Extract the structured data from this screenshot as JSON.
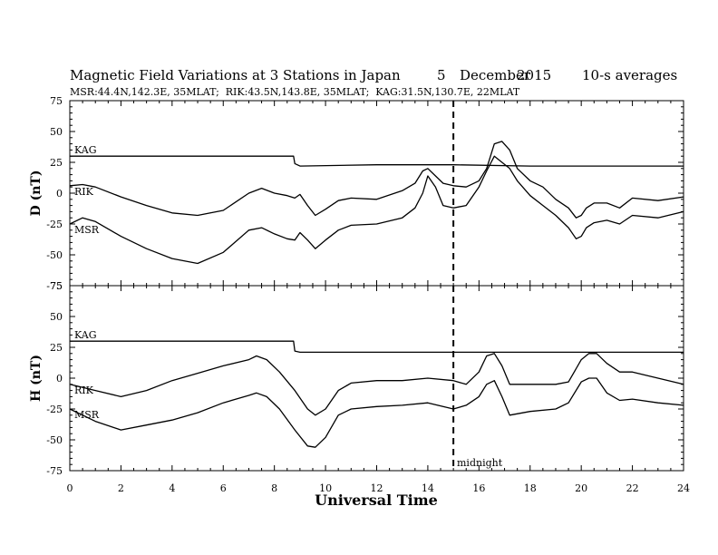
{
  "header": {
    "title": "Magnetic Field Variations at 3 Stations in Japan",
    "day": "5",
    "month": "December",
    "year": "2015",
    "averaging": "10-s averages",
    "stations": "MSR:44.4N,142.3E, 35MLAT;  RIK:43.5N,143.8E, 35MLAT;  KAG:31.5N,130.7E, 22MLAT"
  },
  "chart_data": [
    {
      "type": "line",
      "ylabel": "D (nT)",
      "xlabel": "",
      "ylim": [
        -75,
        75
      ],
      "xlim": [
        0,
        24
      ],
      "yticks": [
        "75",
        "50",
        "25",
        "0",
        "-25",
        "-50",
        "-75"
      ],
      "series": [
        {
          "name": "KAG",
          "x": [
            0,
            8.7,
            8.75,
            8.8,
            9,
            12,
            14,
            15,
            18,
            20,
            22,
            24
          ],
          "values": [
            30,
            30,
            30,
            24,
            22,
            23,
            23,
            23,
            22,
            22,
            22,
            22
          ]
        },
        {
          "name": "RIK",
          "x": [
            0,
            0.5,
            1,
            2,
            3,
            4,
            5,
            6,
            7,
            7.5,
            8,
            8.5,
            8.8,
            9,
            9.3,
            9.6,
            10,
            10.5,
            11,
            12,
            13,
            13.5,
            13.8,
            14,
            14.3,
            14.6,
            15,
            15.5,
            16,
            16.3,
            16.6,
            16.9,
            17.2,
            17.5,
            18,
            18.5,
            19,
            19.5,
            19.8,
            20,
            20.2,
            20.5,
            21,
            21.5,
            22,
            23,
            24
          ],
          "values": [
            6,
            7,
            5,
            -3,
            -10,
            -16,
            -18,
            -14,
            0,
            4,
            0,
            -2,
            -4,
            -1,
            -10,
            -18,
            -13,
            -6,
            -4,
            -5,
            2,
            8,
            18,
            20,
            14,
            8,
            6,
            5,
            10,
            20,
            40,
            42,
            35,
            20,
            10,
            5,
            -5,
            -12,
            -20,
            -18,
            -12,
            -8,
            -8,
            -12,
            -4,
            -6,
            -3
          ]
        },
        {
          "name": "MSR",
          "x": [
            0,
            0.5,
            1,
            2,
            3,
            4,
            5,
            6,
            7,
            7.5,
            8,
            8.5,
            8.8,
            9,
            9.3,
            9.6,
            10,
            10.5,
            11,
            12,
            13,
            13.5,
            13.8,
            14,
            14.3,
            14.6,
            15,
            15.5,
            16,
            16.3,
            16.6,
            16.9,
            17.2,
            17.5,
            18,
            18.5,
            19,
            19.5,
            19.8,
            20,
            20.2,
            20.5,
            21,
            21.5,
            22,
            23,
            24
          ],
          "values": [
            -25,
            -20,
            -23,
            -35,
            -45,
            -53,
            -57,
            -48,
            -30,
            -28,
            -33,
            -37,
            -38,
            -32,
            -38,
            -45,
            -38,
            -30,
            -26,
            -25,
            -20,
            -12,
            0,
            14,
            5,
            -10,
            -12,
            -10,
            5,
            18,
            30,
            25,
            20,
            10,
            -2,
            -10,
            -18,
            -28,
            -37,
            -35,
            -28,
            -24,
            -22,
            -25,
            -18,
            -20,
            -15
          ]
        }
      ]
    },
    {
      "type": "line",
      "ylabel": "H (nT)",
      "xlabel": "Universal Time",
      "ylim": [
        -75,
        75
      ],
      "xlim": [
        0,
        24
      ],
      "yticks": [
        "75",
        "50",
        "25",
        "0",
        "-25",
        "-50",
        "-75"
      ],
      "xticks": [
        "0",
        "2",
        "4",
        "6",
        "8",
        "10",
        "12",
        "14",
        "16",
        "18",
        "20",
        "22",
        "24"
      ],
      "annotations": [
        {
          "text": "midnight",
          "x": 15
        }
      ],
      "vertical_line_x": 15,
      "series": [
        {
          "name": "KAG",
          "x": [
            0,
            8.7,
            8.75,
            8.8,
            9,
            12,
            14,
            16,
            18,
            20,
            22,
            24
          ],
          "values": [
            30,
            30,
            30,
            22,
            21,
            21,
            21,
            21,
            21,
            21,
            21,
            21
          ]
        },
        {
          "name": "RIK",
          "x": [
            0,
            1,
            2,
            3,
            4,
            5,
            6,
            7,
            7.3,
            7.7,
            8.2,
            8.8,
            9.3,
            9.6,
            10,
            10.5,
            11,
            12,
            13,
            14,
            15,
            15.5,
            16,
            16.3,
            16.6,
            16.9,
            17.2,
            18,
            19,
            19.5,
            20,
            20.3,
            20.6,
            21,
            21.5,
            22,
            23,
            24
          ],
          "values": [
            -5,
            -10,
            -15,
            -10,
            -2,
            4,
            10,
            15,
            18,
            15,
            5,
            -10,
            -25,
            -30,
            -25,
            -10,
            -4,
            -2,
            -2,
            0,
            -2,
            -5,
            5,
            18,
            20,
            10,
            -5,
            -5,
            -5,
            -3,
            15,
            20,
            20,
            12,
            5,
            5,
            0,
            -5
          ]
        },
        {
          "name": "MSR",
          "x": [
            0,
            1,
            2,
            3,
            4,
            5,
            6,
            7,
            7.3,
            7.7,
            8.2,
            8.8,
            9.3,
            9.6,
            10,
            10.5,
            11,
            12,
            13,
            14,
            15,
            15.5,
            16,
            16.3,
            16.6,
            16.9,
            17.2,
            18,
            19,
            19.5,
            20,
            20.3,
            20.6,
            21,
            21.5,
            22,
            23,
            24
          ],
          "values": [
            -25,
            -35,
            -42,
            -38,
            -34,
            -28,
            -20,
            -14,
            -12,
            -15,
            -25,
            -42,
            -55,
            -56,
            -48,
            -30,
            -25,
            -23,
            -22,
            -20,
            -25,
            -22,
            -15,
            -5,
            -2,
            -15,
            -30,
            -27,
            -25,
            -20,
            -3,
            0,
            0,
            -12,
            -18,
            -17,
            -20,
            -22
          ]
        }
      ]
    }
  ]
}
